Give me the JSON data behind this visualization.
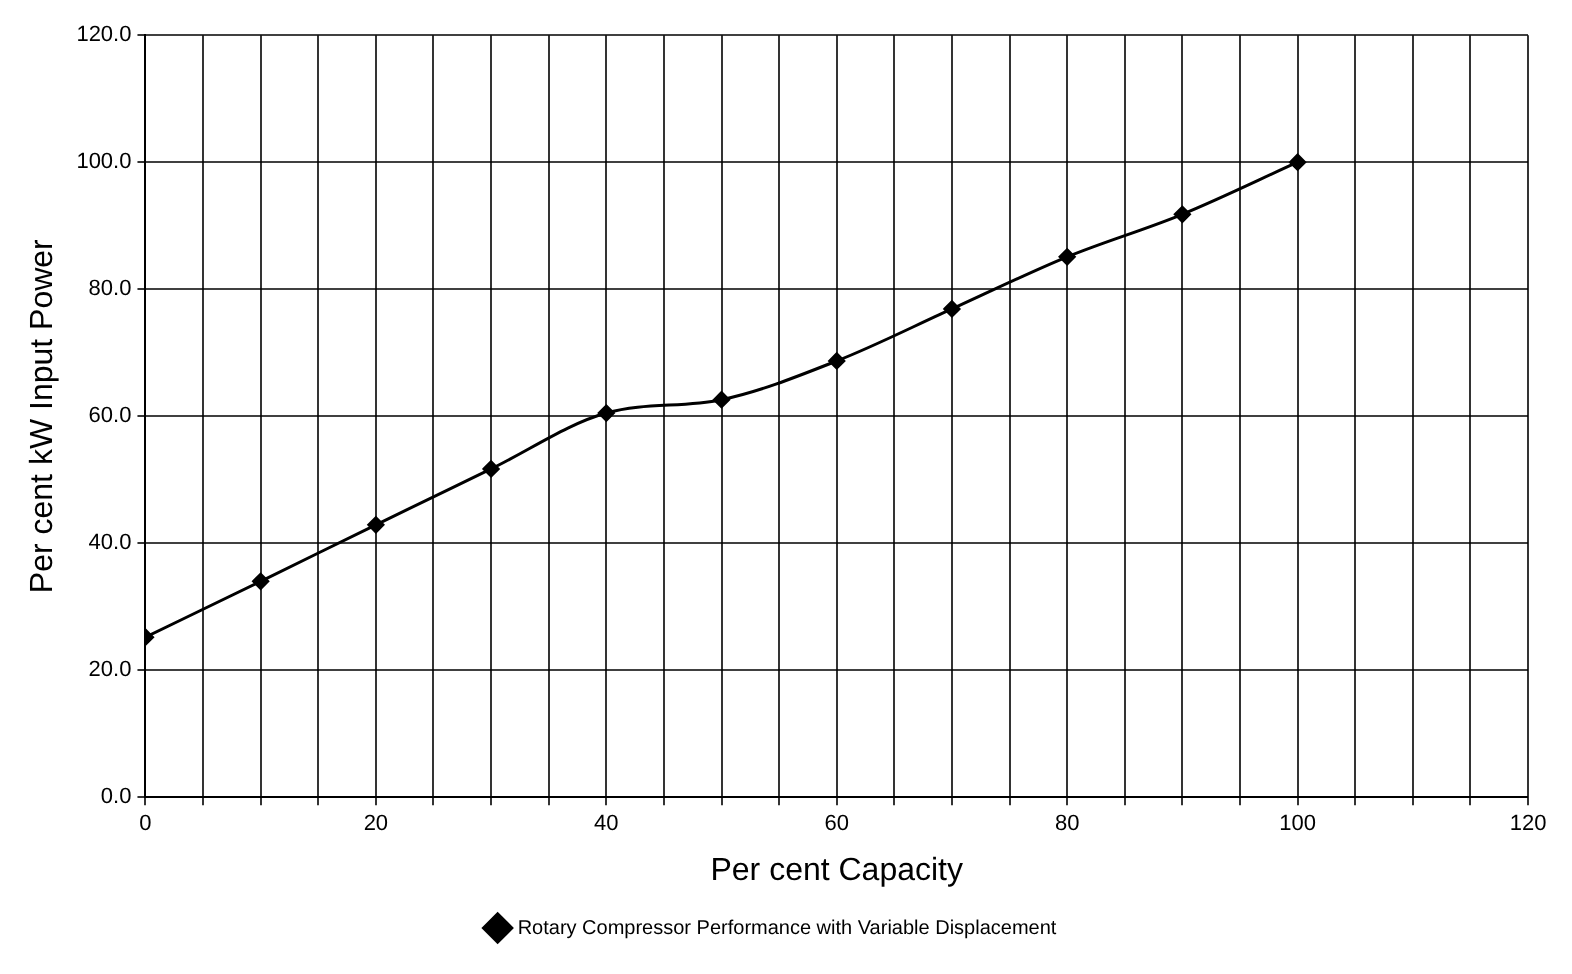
{
  "chart_data": {
    "type": "line",
    "xlabel": "Per cent Capacity",
    "ylabel": "Per cent kW Input Power",
    "x": [
      0,
      10,
      20,
      30,
      40,
      50,
      60,
      70,
      80,
      90,
      100
    ],
    "series": [
      {
        "name": "Rotary Compressor Performance with Variable Displacement",
        "color": "#000000",
        "values": [
          25.2,
          34.0,
          42.9,
          51.7,
          60.5,
          62.6,
          68.7,
          76.9,
          85.1,
          91.8,
          100.0
        ]
      }
    ],
    "xlim": [
      0,
      120
    ],
    "xticks": [
      0,
      {
        "value": 5,
        "label": null
      },
      {
        "value": 10,
        "label": null
      },
      {
        "value": 15,
        "label": null
      },
      20,
      {
        "value": 25,
        "label": null
      },
      {
        "value": 30,
        "label": null
      },
      {
        "value": 35,
        "label": null
      },
      40,
      {
        "value": 45,
        "label": null
      },
      {
        "value": 50,
        "label": null
      },
      {
        "value": 55,
        "label": null
      },
      60,
      {
        "value": 65,
        "label": null
      },
      {
        "value": 70,
        "label": null
      },
      {
        "value": 75,
        "label": null
      },
      80,
      {
        "value": 85,
        "label": null
      },
      {
        "value": 90,
        "label": null
      },
      {
        "value": 95,
        "label": null
      },
      100,
      {
        "value": 105,
        "label": null
      },
      {
        "value": 110,
        "label": null
      },
      {
        "value": 115,
        "label": null
      },
      120
    ],
    "ylim": [
      0,
      120
    ],
    "yticks": [
      {
        "value": 0,
        "label": "0.0"
      },
      {
        "value": 20,
        "label": "20.0"
      },
      {
        "value": 40,
        "label": "40.0"
      },
      {
        "value": 60,
        "label": "60.0"
      },
      {
        "value": 80,
        "label": "80.0"
      },
      {
        "value": 100,
        "label": "100.0"
      },
      {
        "value": 120,
        "label": "120.0"
      }
    ],
    "grid": true,
    "legend": "bottom",
    "marker": "diamond",
    "line_style": "solid"
  }
}
